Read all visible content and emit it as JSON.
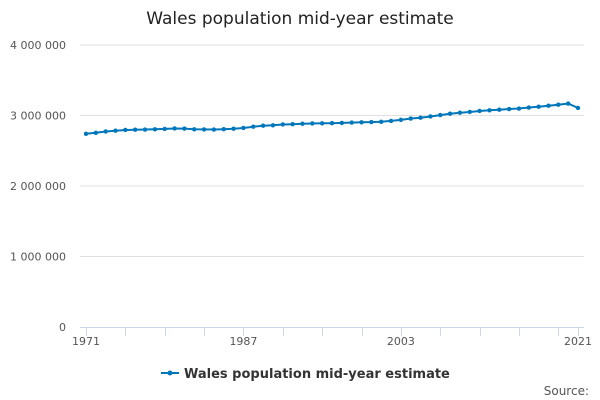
{
  "chart_data": {
    "type": "line",
    "title": "Wales population mid-year estimate",
    "xlabel": "",
    "ylabel": "",
    "ylim": [
      0,
      4000000
    ],
    "yticks": [
      0,
      1000000,
      2000000,
      3000000,
      4000000
    ],
    "ytick_labels": [
      "0",
      "1 000 000",
      "2 000 000",
      "3 000 000",
      "4 000 000"
    ],
    "xtick_labels": [
      "1971",
      "1987",
      "2003",
      "2021"
    ],
    "grid": true,
    "legend": "bottom",
    "color": "#0077bb",
    "x": [
      1971,
      1972,
      1973,
      1974,
      1975,
      1976,
      1977,
      1978,
      1979,
      1980,
      1981,
      1982,
      1983,
      1984,
      1985,
      1986,
      1987,
      1988,
      1989,
      1990,
      1991,
      1992,
      1993,
      1994,
      1995,
      1996,
      1997,
      1998,
      1999,
      2000,
      2001,
      2002,
      2003,
      2004,
      2005,
      2006,
      2007,
      2008,
      2009,
      2010,
      2011,
      2012,
      2013,
      2014,
      2015,
      2016,
      2017,
      2018,
      2019,
      2020,
      2021
    ],
    "series": [
      {
        "name": "Wales population mid-year estimate",
        "values": [
          2740000,
          2755000,
          2773000,
          2785000,
          2795000,
          2799000,
          2801000,
          2804000,
          2810000,
          2816000,
          2814000,
          2804000,
          2803000,
          2801000,
          2806000,
          2813000,
          2823000,
          2841000,
          2855000,
          2861000,
          2873000,
          2877000,
          2883000,
          2887000,
          2889000,
          2891000,
          2895000,
          2900000,
          2904000,
          2907000,
          2910000,
          2923000,
          2938000,
          2957000,
          2969000,
          2986000,
          3006000,
          3026000,
          3039000,
          3050000,
          3064000,
          3074000,
          3082000,
          3092000,
          3099000,
          3113000,
          3125000,
          3139000,
          3153000,
          3170000,
          3107000
        ]
      }
    ]
  },
  "source_label": "Source:"
}
